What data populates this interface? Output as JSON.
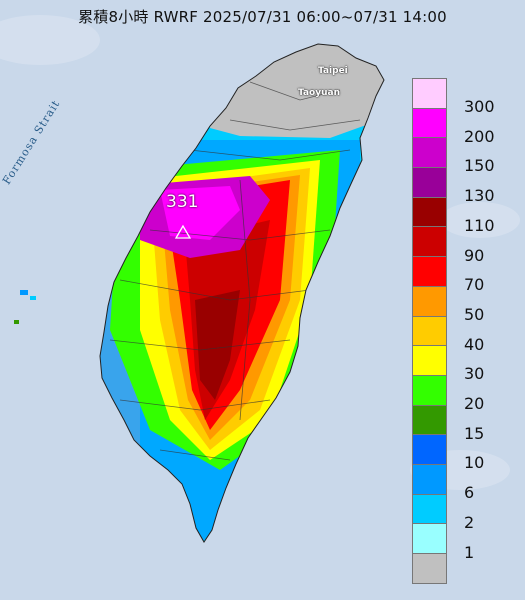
{
  "title": "累積8小時 RWRF 2025/07/31 06:00~07/31 14:00",
  "strait_label": "Formosa Strait",
  "places": {
    "taipei": "Taipei",
    "taoyuan": "Taoyuan"
  },
  "max_marker": {
    "value": "331",
    "icon": "triangle-marker-icon"
  },
  "legend": {
    "items": [
      {
        "label": "300",
        "color": "#ffccff"
      },
      {
        "label": "200",
        "color": "#ff00ff"
      },
      {
        "label": "150",
        "color": "#cc00cc"
      },
      {
        "label": "130",
        "color": "#990099"
      },
      {
        "label": "110",
        "color": "#990000"
      },
      {
        "label": "90",
        "color": "#cc0000"
      },
      {
        "label": "70",
        "color": "#ff0000"
      },
      {
        "label": "50",
        "color": "#ff9900"
      },
      {
        "label": "40",
        "color": "#ffcc00"
      },
      {
        "label": "30",
        "color": "#ffff00"
      },
      {
        "label": "20",
        "color": "#33ff00"
      },
      {
        "label": "15",
        "color": "#339900"
      },
      {
        "label": "10",
        "color": "#0066ff"
      },
      {
        "label": "6",
        "color": "#0099ff"
      },
      {
        "label": "2",
        "color": "#00ccff"
      },
      {
        "label": "1",
        "color": "#99ffff"
      },
      {
        "label": "",
        "color": "#c0c0c0"
      }
    ]
  }
}
